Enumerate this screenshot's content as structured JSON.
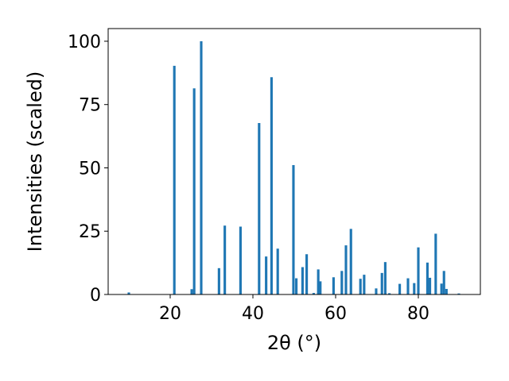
{
  "chart_data": {
    "type": "bar",
    "title": "",
    "xlabel": "2θ (°)",
    "ylabel": "Intensities (scaled)",
    "xlim": [
      5,
      95
    ],
    "ylim": [
      0,
      105
    ],
    "x_ticks": [
      20,
      40,
      60,
      80
    ],
    "y_ticks": [
      0,
      25,
      50,
      75,
      100
    ],
    "grid": false,
    "bar_color": "#1f77b4",
    "bar_width": 0.6,
    "series": [
      {
        "x": [
          10.0,
          21.0,
          25.2,
          25.8,
          27.5,
          31.8,
          33.2,
          37.0,
          41.5,
          43.2,
          44.5,
          46.0,
          49.8,
          50.5,
          52.0,
          53.0,
          54.7,
          55.8,
          56.3,
          59.5,
          61.5,
          62.5,
          63.7,
          66.0,
          66.9,
          69.8,
          71.2,
          72.0,
          73.0,
          75.5,
          77.5,
          79.0,
          80.0,
          82.2,
          82.8,
          84.2,
          85.6,
          86.2,
          86.8,
          89.8
        ],
        "y": [
          0.8,
          90.3,
          2.1,
          81.4,
          100.0,
          10.4,
          27.2,
          26.8,
          67.7,
          15.0,
          85.8,
          18.1,
          51.1,
          6.4,
          10.8,
          15.9,
          0.6,
          9.9,
          5.2,
          6.8,
          9.3,
          19.4,
          25.9,
          6.2,
          7.8,
          2.4,
          8.5,
          12.8,
          0.5,
          4.2,
          6.4,
          4.5,
          18.6,
          12.6,
          6.6,
          24.0,
          4.3,
          9.3,
          2.2,
          0.4
        ]
      }
    ]
  }
}
